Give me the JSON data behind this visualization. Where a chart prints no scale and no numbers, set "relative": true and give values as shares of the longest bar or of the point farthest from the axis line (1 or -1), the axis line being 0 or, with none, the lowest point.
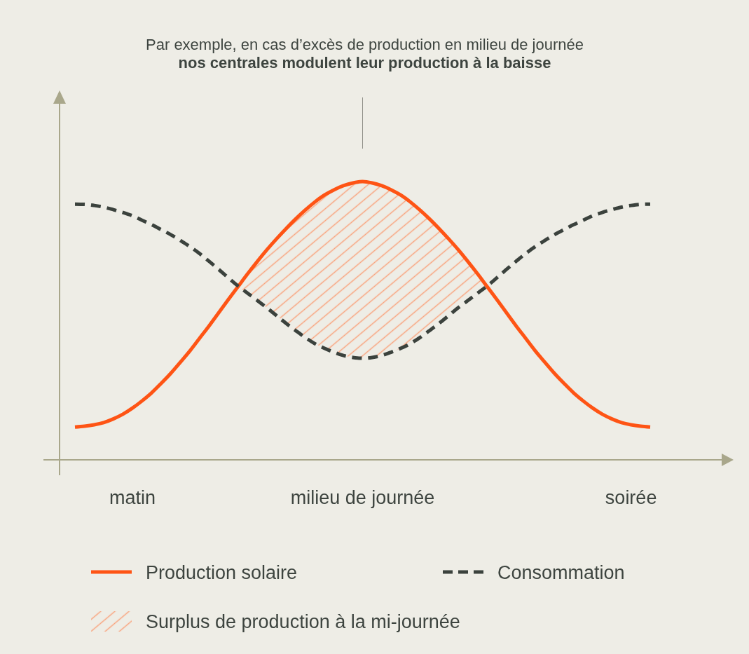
{
  "chart_data": {
    "type": "line",
    "relative": true,
    "legend": "bottom",
    "annotations": [
      "Par exemple, en cas d’excès de production en milieu de journée",
      "nos centrales modulent leur production à la baisse"
    ],
    "categories": [
      null,
      null,
      null,
      null,
      null,
      null,
      "matin",
      null,
      null,
      null,
      null,
      null,
      null,
      null,
      null,
      null,
      null,
      null,
      null,
      null,
      null,
      null,
      null,
      null,
      null,
      null,
      null,
      null,
      null,
      null,
      "milieu de journée",
      null,
      null,
      null,
      null,
      null,
      null,
      null,
      null,
      null,
      null,
      null,
      null,
      null,
      null,
      null,
      null,
      null,
      null,
      null,
      null,
      null,
      null,
      null,
      null,
      null,
      null,
      null,
      "soirée",
      null,
      null
    ],
    "series": [
      {
        "name": "Production solaire",
        "line_style": "solid",
        "color": "#fe5415",
        "values": [
          0.118,
          0.121,
          0.126,
          0.134,
          0.147,
          0.164,
          0.186,
          0.212,
          0.241,
          0.275,
          0.311,
          0.351,
          0.392,
          0.437,
          0.482,
          0.529,
          0.576,
          0.622,
          0.668,
          0.712,
          0.754,
          0.793,
          0.83,
          0.865,
          0.897,
          0.926,
          0.951,
          0.97,
          0.985,
          0.995,
          1.0,
          0.995,
          0.985,
          0.97,
          0.951,
          0.926,
          0.897,
          0.865,
          0.83,
          0.793,
          0.754,
          0.712,
          0.668,
          0.622,
          0.576,
          0.529,
          0.482,
          0.437,
          0.392,
          0.351,
          0.311,
          0.275,
          0.241,
          0.212,
          0.186,
          0.164,
          0.147,
          0.134,
          0.126,
          0.121,
          0.118
        ]
      },
      {
        "name": "Consommation",
        "line_style": "dashed",
        "color": "#3b423d",
        "values": [
          0.919,
          0.918,
          0.914,
          0.908,
          0.899,
          0.889,
          0.877,
          0.861,
          0.845,
          0.827,
          0.809,
          0.788,
          0.766,
          0.741,
          0.713,
          0.684,
          0.654,
          0.625,
          0.599,
          0.573,
          0.547,
          0.519,
          0.491,
          0.465,
          0.44,
          0.418,
          0.401,
          0.387,
          0.375,
          0.368,
          0.365,
          0.368,
          0.375,
          0.387,
          0.401,
          0.418,
          0.44,
          0.465,
          0.491,
          0.519,
          0.547,
          0.573,
          0.599,
          0.625,
          0.654,
          0.684,
          0.713,
          0.741,
          0.766,
          0.788,
          0.809,
          0.827,
          0.845,
          0.861,
          0.877,
          0.889,
          0.899,
          0.908,
          0.914,
          0.918,
          0.919
        ]
      },
      {
        "name": "Surplus de production à la mi-journée",
        "type": "area",
        "color": "#f8a47e",
        "values": [
          null,
          null,
          null,
          null,
          null,
          null,
          null,
          null,
          null,
          null,
          null,
          null,
          null,
          null,
          null,
          null,
          null,
          null,
          null,
          null,
          null,
          null,
          null,
          null,
          null,
          null,
          null,
          null,
          null,
          null,
          null,
          null,
          null,
          null,
          null,
          null,
          null,
          null,
          null,
          null,
          null,
          null,
          null,
          null,
          null,
          null,
          null,
          null,
          null,
          null,
          null,
          null,
          null,
          null,
          null,
          null,
          null,
          null,
          null,
          null,
          null
        ],
        "upper": [
          null,
          null,
          null,
          null,
          null,
          null,
          null,
          null,
          null,
          null,
          null,
          null,
          null,
          null,
          null,
          null,
          null,
          0.623,
          0.668,
          0.712,
          0.754,
          0.793,
          0.83,
          0.865,
          0.897,
          0.926,
          0.951,
          0.97,
          0.985,
          0.995,
          1.0,
          0.995,
          0.985,
          0.97,
          0.951,
          0.926,
          0.897,
          0.865,
          0.83,
          0.793,
          0.754,
          0.712,
          0.668,
          0.623,
          null,
          null,
          null,
          null,
          null,
          null,
          null,
          null,
          null,
          null,
          null,
          null,
          null,
          null,
          null,
          null,
          null
        ],
        "lower": [
          null,
          null,
          null,
          null,
          null,
          null,
          null,
          null,
          null,
          null,
          null,
          null,
          null,
          null,
          null,
          null,
          null,
          0.623,
          0.599,
          0.573,
          0.547,
          0.519,
          0.491,
          0.465,
          0.44,
          0.418,
          0.401,
          0.387,
          0.375,
          0.368,
          0.365,
          0.368,
          0.375,
          0.387,
          0.401,
          0.418,
          0.44,
          0.465,
          0.491,
          0.519,
          0.547,
          0.573,
          0.599,
          0.623,
          null,
          null,
          null,
          null,
          null,
          null,
          null,
          null,
          null,
          null,
          null,
          null,
          null,
          null,
          null,
          null,
          null
        ]
      }
    ]
  }
}
